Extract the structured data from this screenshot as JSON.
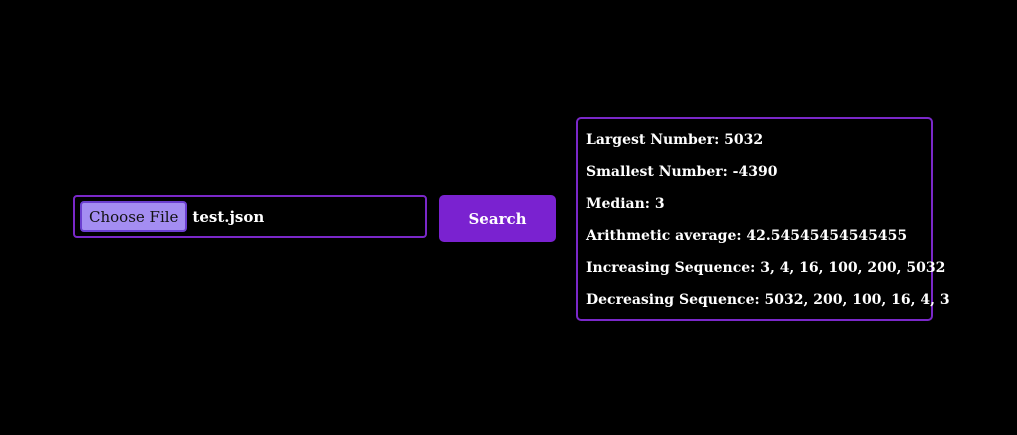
{
  "upload": {
    "choose_label": "Choose File",
    "file_name": "test.json"
  },
  "search_button": {
    "label": "Search"
  },
  "results": [
    {
      "label": "Largest Number: ",
      "value": "5032"
    },
    {
      "label": "Smallest Number: ",
      "value": "-4390"
    },
    {
      "label": "Median: ",
      "value": "3"
    },
    {
      "label": "Arithmetic average: ",
      "value": "42.54545454545455"
    },
    {
      "label": "Increasing Sequence: ",
      "value": "3, 4, 16, 100, 200, 5032"
    },
    {
      "label": "Decreasing Sequence: ",
      "value": "5032, 200, 100, 16, 4, 3"
    }
  ],
  "colors": {
    "background": "#000000",
    "accent": "#7a22d0",
    "border": "#7a28c9",
    "choose_button": "#a48df2",
    "text": "#ffffff"
  }
}
